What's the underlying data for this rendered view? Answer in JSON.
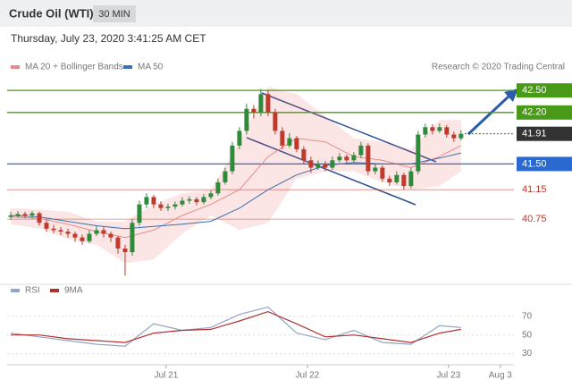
{
  "header": {
    "title": "Crude Oil (WTI)",
    "timeframe": "30 MIN",
    "timestamp": "Thursday, July 23, 2020 3:41:25 AM CET",
    "credit": "Research © 2020 Trading Central"
  },
  "chart_data": [
    {
      "type": "candlestick",
      "up_color": "#2e8b3a",
      "down_color": "#c0392b",
      "xlim": [
        -0.5,
        70.4
      ],
      "ylim": [
        39.9,
        42.66
      ],
      "x": [
        0,
        1,
        2,
        3,
        4,
        5,
        6,
        7,
        8,
        9,
        10,
        11,
        12,
        13,
        14,
        15,
        16,
        17,
        18,
        19,
        20,
        21,
        22,
        23,
        24,
        25,
        26,
        27,
        28,
        29,
        30,
        31,
        32,
        33,
        34,
        35,
        36,
        37,
        38,
        39,
        40,
        41,
        42,
        43,
        44,
        45,
        46,
        47,
        48,
        49,
        50,
        51,
        52,
        53,
        54,
        55,
        56,
        57,
        58,
        59,
        60,
        61,
        62,
        63
      ],
      "candles": [
        [
          40.78,
          40.85,
          40.74,
          40.8
        ],
        [
          40.8,
          40.86,
          40.77,
          40.82
        ],
        [
          40.82,
          40.85,
          40.76,
          40.8
        ],
        [
          40.8,
          40.86,
          40.76,
          40.83
        ],
        [
          40.83,
          40.85,
          40.66,
          40.7
        ],
        [
          40.7,
          40.74,
          40.58,
          40.62
        ],
        [
          40.62,
          40.67,
          40.56,
          40.6
        ],
        [
          40.6,
          40.64,
          40.53,
          40.58
        ],
        [
          40.58,
          40.62,
          40.5,
          40.55
        ],
        [
          40.55,
          40.58,
          40.44,
          40.5
        ],
        [
          40.5,
          40.54,
          40.4,
          40.45
        ],
        [
          40.45,
          40.6,
          40.42,
          40.55
        ],
        [
          40.55,
          40.66,
          40.52,
          40.6
        ],
        [
          40.6,
          40.64,
          40.5,
          40.55
        ],
        [
          40.55,
          40.58,
          40.44,
          40.5
        ],
        [
          40.5,
          40.52,
          40.28,
          40.35
        ],
        [
          40.35,
          40.4,
          39.98,
          40.3
        ],
        [
          40.3,
          40.75,
          40.25,
          40.7
        ],
        [
          40.7,
          41.0,
          40.66,
          40.95
        ],
        [
          40.95,
          41.1,
          40.9,
          41.05
        ],
        [
          41.05,
          41.08,
          40.9,
          40.95
        ],
        [
          40.95,
          40.99,
          40.86,
          40.9
        ],
        [
          40.9,
          40.96,
          40.86,
          40.92
        ],
        [
          40.92,
          40.99,
          40.88,
          40.95
        ],
        [
          40.95,
          41.05,
          40.92,
          41.0
        ],
        [
          41.0,
          41.06,
          40.96,
          41.02
        ],
        [
          41.02,
          41.05,
          40.94,
          40.98
        ],
        [
          40.98,
          41.09,
          40.95,
          41.05
        ],
        [
          41.05,
          41.14,
          41.02,
          41.1
        ],
        [
          41.1,
          41.3,
          41.07,
          41.25
        ],
        [
          41.25,
          41.45,
          41.22,
          41.4
        ],
        [
          41.4,
          41.8,
          41.36,
          41.75
        ],
        [
          41.75,
          42.0,
          41.7,
          41.95
        ],
        [
          41.95,
          42.32,
          41.9,
          42.25
        ],
        [
          42.25,
          42.3,
          42.12,
          42.2
        ],
        [
          42.2,
          42.52,
          42.15,
          42.45
        ],
        [
          42.45,
          42.5,
          42.15,
          42.2
        ],
        [
          42.2,
          42.25,
          41.9,
          41.95
        ],
        [
          41.95,
          42.0,
          41.7,
          41.75
        ],
        [
          41.75,
          41.92,
          41.72,
          41.85
        ],
        [
          41.85,
          41.88,
          41.66,
          41.7
        ],
        [
          41.7,
          41.74,
          41.5,
          41.55
        ],
        [
          41.55,
          41.6,
          41.38,
          41.45
        ],
        [
          41.45,
          41.55,
          41.42,
          41.5
        ],
        [
          41.5,
          41.54,
          41.4,
          41.45
        ],
        [
          41.45,
          41.6,
          41.42,
          41.55
        ],
        [
          41.55,
          41.65,
          41.52,
          41.6
        ],
        [
          41.6,
          41.63,
          41.5,
          41.55
        ],
        [
          41.55,
          41.66,
          41.52,
          41.62
        ],
        [
          41.62,
          41.8,
          41.58,
          41.75
        ],
        [
          41.75,
          41.78,
          41.35,
          41.4
        ],
        [
          41.4,
          41.5,
          41.36,
          41.45
        ],
        [
          41.45,
          41.48,
          41.26,
          41.3
        ],
        [
          41.3,
          41.34,
          41.2,
          41.25
        ],
        [
          41.25,
          41.4,
          41.22,
          41.35
        ],
        [
          41.35,
          41.38,
          41.15,
          41.2
        ],
        [
          41.2,
          41.45,
          41.17,
          41.4
        ],
        [
          41.4,
          41.95,
          41.36,
          41.9
        ],
        [
          41.9,
          42.05,
          41.86,
          42.0
        ],
        [
          42.0,
          42.04,
          41.9,
          41.95
        ],
        [
          41.95,
          42.05,
          41.92,
          42.0
        ],
        [
          42.0,
          42.03,
          41.86,
          41.9
        ],
        [
          41.9,
          41.94,
          41.8,
          41.85
        ],
        [
          41.85,
          41.96,
          41.82,
          41.91
        ]
      ],
      "overlays": [
        {
          "name": "MA 20 + Bollinger Bands",
          "color": "#e88a8a",
          "band_color": "rgba(240,110,110,0.18)",
          "x": [
            0,
            4,
            8,
            12,
            16,
            20,
            24,
            28,
            32,
            36,
            40,
            44,
            48,
            52,
            56,
            60,
            63
          ],
          "values": [
            40.78,
            40.76,
            40.68,
            40.58,
            40.5,
            40.6,
            40.8,
            40.95,
            41.15,
            41.6,
            41.85,
            41.8,
            41.6,
            41.55,
            41.45,
            41.6,
            41.75
          ],
          "upper": [
            40.9,
            40.88,
            40.85,
            40.72,
            40.72,
            40.95,
            41.1,
            41.15,
            41.8,
            42.55,
            42.45,
            42.15,
            41.85,
            41.8,
            41.7,
            42.1,
            42.1
          ],
          "lower": [
            40.68,
            40.62,
            40.48,
            40.4,
            40.15,
            40.2,
            40.55,
            40.8,
            40.6,
            40.7,
            41.3,
            41.4,
            41.4,
            41.25,
            41.15,
            41.2,
            41.4
          ]
        },
        {
          "name": "MA 50",
          "color": "#3a6fb0",
          "x": [
            0,
            4,
            8,
            12,
            16,
            20,
            24,
            28,
            32,
            36,
            40,
            44,
            48,
            52,
            56,
            60,
            63
          ],
          "values": [
            40.8,
            40.78,
            40.72,
            40.66,
            40.62,
            40.65,
            40.68,
            40.72,
            40.9,
            41.15,
            41.35,
            41.48,
            41.52,
            41.5,
            41.5,
            41.58,
            41.65
          ]
        }
      ],
      "levels": [
        {
          "value": 42.5,
          "label": "42.50",
          "color": "#4a9a1a",
          "line_style": "solid",
          "label_style": "box"
        },
        {
          "value": 42.2,
          "label": "42.20",
          "color": "#4a9a1a",
          "line_style": "solid",
          "label_style": "box"
        },
        {
          "value": 41.91,
          "label": "41.91",
          "color": "#333333",
          "line_style": "dotted",
          "label_style": "box"
        },
        {
          "value": 41.5,
          "label": "41.50",
          "color": "#2a6ad0",
          "line_style": "solid",
          "label_style": "box"
        },
        {
          "value": 41.15,
          "label": "41.15",
          "color": "#c0392b",
          "line_style": "solid",
          "label_style": "text"
        },
        {
          "value": 40.75,
          "label": "40.75",
          "color": "#c0392b",
          "line_style": "solid",
          "label_style": "text"
        }
      ]
    },
    {
      "type": "line",
      "xlim": [
        -0.5,
        70.4
      ],
      "ylim": [
        21,
        88
      ],
      "yticks": [
        70,
        50,
        30
      ],
      "grid": true,
      "xticks": [
        {
          "value": 21.75,
          "label": "Jul 21"
        },
        {
          "value": 41.5,
          "label": "Jul 22"
        },
        {
          "value": 61.25,
          "label": "Jul 23"
        },
        {
          "value": 68.5,
          "label": "Aug 3"
        }
      ],
      "series": [
        {
          "name": "RSI",
          "color": "#8fa6c6",
          "x": [
            0,
            4,
            8,
            12,
            16,
            20,
            24,
            28,
            32,
            36,
            40,
            44,
            48,
            52,
            56,
            60,
            63
          ],
          "values": [
            52,
            48,
            44,
            40,
            38,
            62,
            55,
            58,
            72,
            80,
            52,
            45,
            55,
            42,
            40,
            60,
            58
          ]
        },
        {
          "name": "9MA",
          "color": "#b03030",
          "x": [
            0,
            4,
            8,
            12,
            16,
            20,
            24,
            28,
            32,
            36,
            40,
            44,
            48,
            52,
            56,
            60,
            63
          ],
          "values": [
            50,
            50,
            46,
            44,
            42,
            52,
            55,
            56,
            65,
            75,
            62,
            48,
            50,
            46,
            42,
            52,
            56
          ]
        }
      ]
    }
  ]
}
